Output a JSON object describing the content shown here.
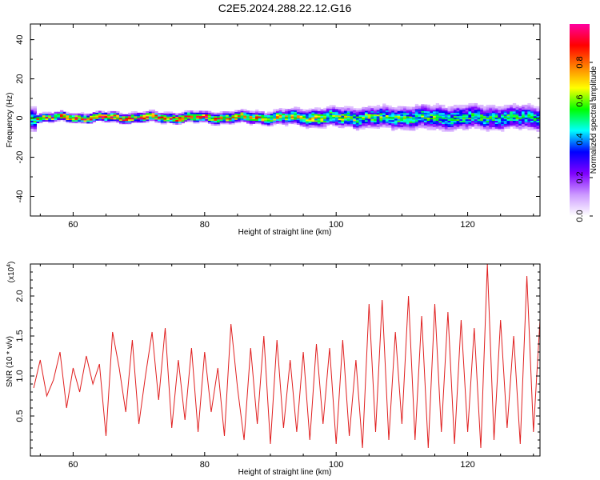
{
  "title": "C2E5.2024.288.22.12.G16",
  "colors": {
    "snr_line": "#e02020",
    "frame": "#000000"
  },
  "chart_data": [
    {
      "type": "heatmap",
      "xlabel": "Height of straight line (km)",
      "ylabel": "Frequency (Hz)",
      "xlim": [
        53.5,
        131
      ],
      "ylim": [
        -50,
        48
      ],
      "xticks": [
        60,
        80,
        100,
        120
      ],
      "xtick_labels": [
        "60",
        "80",
        "100",
        "120"
      ],
      "yticks": [
        -40,
        -20,
        0,
        20,
        40
      ],
      "ytick_labels": [
        "-40",
        "-20",
        "0",
        "20",
        "40"
      ],
      "colorbar": {
        "label": "Normalized spectral amplitude",
        "range": [
          0,
          1
        ],
        "ticks": [
          0.0,
          0.2,
          0.4,
          0.6,
          0.8
        ],
        "tick_labels": [
          "0.0",
          "0.2",
          "0.4",
          "0.6",
          "0.8"
        ],
        "colormap": [
          "#ffffff",
          "#cc99ff",
          "#7f00ff",
          "#0000ff",
          "#00ffff",
          "#00ff00",
          "#ffff00",
          "#ff8000",
          "#ff0000",
          "#ff00a0"
        ]
      },
      "band_profile": [
        {
          "x": 54,
          "halfwidth": 2.0,
          "peak": 0.85
        },
        {
          "x": 60,
          "halfwidth": 2.0,
          "peak": 0.95
        },
        {
          "x": 66,
          "halfwidth": 2.2,
          "peak": 0.92
        },
        {
          "x": 72,
          "halfwidth": 2.2,
          "peak": 0.93
        },
        {
          "x": 78,
          "halfwidth": 2.4,
          "peak": 0.9
        },
        {
          "x": 84,
          "halfwidth": 2.6,
          "peak": 0.82
        },
        {
          "x": 90,
          "halfwidth": 3.0,
          "peak": 0.75
        },
        {
          "x": 96,
          "halfwidth": 4.0,
          "peak": 0.72
        },
        {
          "x": 102,
          "halfwidth": 4.5,
          "peak": 0.65
        },
        {
          "x": 108,
          "halfwidth": 5.0,
          "peak": 0.6
        },
        {
          "x": 114,
          "halfwidth": 5.5,
          "peak": 0.58
        },
        {
          "x": 120,
          "halfwidth": 5.5,
          "peak": 0.56
        },
        {
          "x": 126,
          "halfwidth": 5.5,
          "peak": 0.55
        },
        {
          "x": 131,
          "halfwidth": 5.5,
          "peak": 0.55
        }
      ]
    },
    {
      "type": "line",
      "xlabel": "Height of straight line (km)",
      "ylabel": "SNR (10 * v/v)",
      "y_multiplier_label": "(x10",
      "y_multiplier_exp": "4",
      "xlim": [
        53.5,
        131
      ],
      "ylim": [
        0,
        2.4
      ],
      "xticks": [
        60,
        80,
        100,
        120
      ],
      "xtick_labels": [
        "60",
        "80",
        "100",
        "120"
      ],
      "yticks": [
        0.5,
        1.0,
        1.5,
        2.0
      ],
      "ytick_labels": [
        "0.5",
        "1.0",
        "1.5",
        "2.0"
      ],
      "series": [
        {
          "x": [
            54,
            55,
            56,
            57,
            58,
            59,
            60,
            61,
            62,
            63,
            64,
            65,
            66,
            67,
            68,
            69,
            70,
            71,
            72,
            73,
            74,
            75,
            76,
            77,
            78,
            79,
            80,
            81,
            82,
            83,
            84,
            85,
            86,
            87,
            88,
            89,
            90,
            91,
            92,
            93,
            94,
            95,
            96,
            97,
            98,
            99,
            100,
            101,
            102,
            103,
            104,
            105,
            106,
            107,
            108,
            109,
            110,
            111,
            112,
            113,
            114,
            115,
            116,
            117,
            118,
            119,
            120,
            121,
            122,
            123,
            124,
            125,
            126,
            127,
            128,
            129,
            130,
            131
          ],
          "y": [
            0.85,
            1.2,
            0.75,
            0.95,
            1.3,
            0.6,
            1.1,
            0.8,
            1.25,
            0.9,
            1.15,
            0.25,
            1.55,
            1.1,
            0.55,
            1.45,
            0.4,
            1.0,
            1.55,
            0.7,
            1.6,
            0.35,
            1.2,
            0.45,
            1.35,
            0.3,
            1.3,
            0.55,
            1.1,
            0.25,
            1.65,
            0.85,
            0.2,
            1.35,
            0.4,
            1.5,
            0.15,
            1.45,
            0.35,
            1.2,
            0.3,
            1.3,
            0.2,
            1.4,
            0.4,
            1.35,
            0.15,
            1.45,
            0.25,
            1.2,
            0.1,
            1.9,
            0.3,
            1.95,
            0.2,
            1.55,
            0.4,
            2.0,
            0.2,
            1.75,
            0.1,
            1.9,
            0.3,
            1.8,
            0.15,
            1.7,
            0.3,
            1.6,
            0.1,
            2.4,
            0.2,
            1.7,
            0.35,
            1.5,
            0.15,
            2.25,
            0.3,
            1.7
          ]
        }
      ]
    }
  ]
}
